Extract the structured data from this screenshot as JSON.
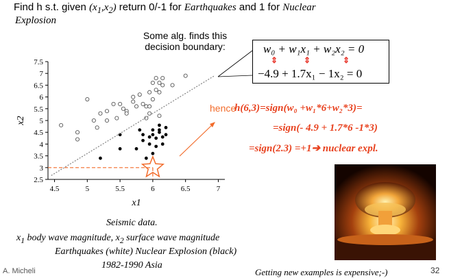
{
  "title": {
    "line1_pre": "Find h s.t. given ",
    "line1_x": "(x",
    "line1_sub1": "1",
    "line1_mid": ",x",
    "line1_sub2": "2",
    "line1_close": ")",
    "line1_post": " return 0/-1 for ",
    "line1_eq": "Earthquakes",
    "line1_and": " and 1 for ",
    "line1_nuc": "Nuclear",
    "line2": "Explosion"
  },
  "callout": {
    "line1": "Some alg. finds this",
    "line2": "decision boundary:",
    "eq_general": "w₀ + w₁x₁ + w₂x₂ = 0",
    "eq_specific": "−4.9 + 1.7x₁ − 1x₂ = 0",
    "arrow_glyph": "⇕"
  },
  "hence_label": "hence",
  "derivation": {
    "line1": "h(6,3)=sign(w₀ +w₁*6+w₂*3)=",
    "line2": "=sign(- 4.9 + 1.7*6  -1*3)",
    "line3": "=sign(2.3) =+1➔ nuclear expl."
  },
  "colors": {
    "accent": "#e8411e",
    "hence": "#f26b2a",
    "star": "#f26b2a",
    "boundary": "#808080"
  },
  "chart_data": {
    "type": "scatter",
    "xlabel": "x1",
    "ylabel": "x2",
    "xlim": [
      4.4,
      7.1
    ],
    "ylim": [
      2.5,
      7.5
    ],
    "xticks": [
      "4.5",
      "5",
      "5.5",
      "6",
      "6.5",
      "7"
    ],
    "yticks": [
      "2.5",
      "3",
      "3.5",
      "4",
      "4.5",
      "5",
      "5.5",
      "6",
      "6.5",
      "7",
      "7.5"
    ],
    "series": [
      {
        "marker": "open-circle",
        "points": [
          [
            4.6,
            4.8
          ],
          [
            4.85,
            4.5
          ],
          [
            4.85,
            4.2
          ],
          [
            5.0,
            5.9
          ],
          [
            5.1,
            5.0
          ],
          [
            5.15,
            4.7
          ],
          [
            5.2,
            5.3
          ],
          [
            5.3,
            5.4
          ],
          [
            5.3,
            5.0
          ],
          [
            5.4,
            5.7
          ],
          [
            5.45,
            5.1
          ],
          [
            5.5,
            5.7
          ],
          [
            5.55,
            5.5
          ],
          [
            5.6,
            5.4
          ],
          [
            5.6,
            5.3
          ],
          [
            5.7,
            6.0
          ],
          [
            5.7,
            5.8
          ],
          [
            5.75,
            5.6
          ],
          [
            5.8,
            6.1
          ],
          [
            5.85,
            5.7
          ],
          [
            5.9,
            5.6
          ],
          [
            5.9,
            5.1
          ],
          [
            5.95,
            6.2
          ],
          [
            5.95,
            5.6
          ],
          [
            6.0,
            6.6
          ],
          [
            6.0,
            5.9
          ],
          [
            6.05,
            6.8
          ],
          [
            6.1,
            6.6
          ],
          [
            6.1,
            6.2
          ],
          [
            6.05,
            6.3
          ],
          [
            6.15,
            6.8
          ],
          [
            6.15,
            6.5
          ],
          [
            6.3,
            6.5
          ],
          [
            6.5,
            6.9
          ],
          [
            6.1,
            5.2
          ],
          [
            5.95,
            5.3
          ]
        ]
      },
      {
        "marker": "filled-circle",
        "points": [
          [
            5.2,
            3.4
          ],
          [
            5.5,
            3.8
          ],
          [
            5.5,
            4.4
          ],
          [
            5.75,
            3.8
          ],
          [
            5.8,
            4.6
          ],
          [
            5.85,
            4.4
          ],
          [
            5.85,
            4.15
          ],
          [
            5.95,
            4.3
          ],
          [
            5.95,
            4.0
          ],
          [
            6.0,
            4.6
          ],
          [
            6.0,
            4.4
          ],
          [
            6.05,
            4.25
          ],
          [
            6.05,
            3.9
          ],
          [
            6.1,
            4.8
          ],
          [
            6.1,
            4.5
          ],
          [
            6.15,
            4.3
          ],
          [
            6.15,
            4.0
          ],
          [
            6.2,
            4.7
          ],
          [
            6.2,
            4.4
          ],
          [
            5.9,
            3.4
          ],
          [
            6.0,
            3.6
          ],
          [
            6.1,
            4.6
          ]
        ]
      }
    ],
    "boundary_line": {
      "slope": 1.7,
      "intercept": -4.9
    },
    "highlight_point": [
      6,
      3
    ]
  },
  "captions": {
    "seismic": "Seismic data.",
    "line2_x1": "x",
    "line2_sub1": "1",
    "line2_mid": " body wave magnitude, x",
    "line2_sub2": "2",
    "line2_post": " surface wave magnitude",
    "line3": "Earthquakes (white) Nuclear Explosion (black)",
    "line4": "1982-1990 Asia"
  },
  "author": "A. Micheli",
  "footer_note": "Getting new examples is expensive;-)",
  "page_number": "32"
}
